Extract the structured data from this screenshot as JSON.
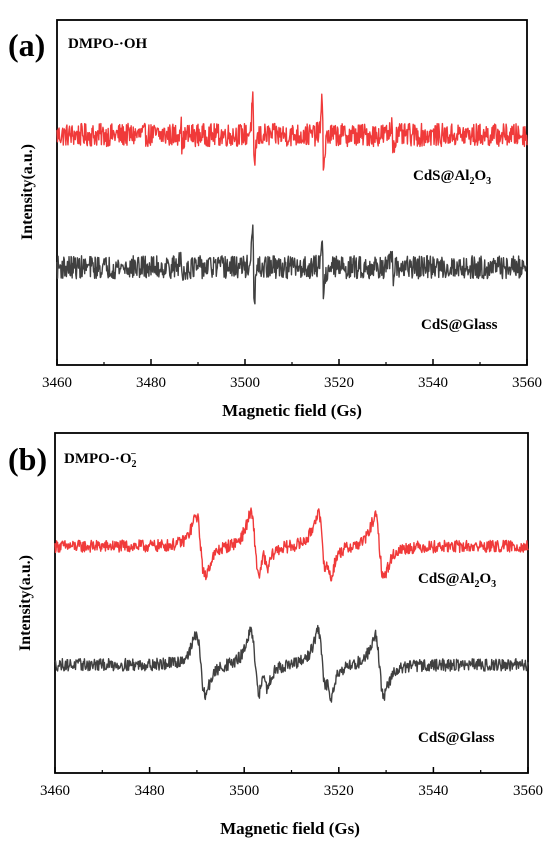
{
  "panels": [
    {
      "letter": "(a)",
      "probe": "DMPO-·OH",
      "probe_main": "DMPO-·OH",
      "probe_sup": "",
      "probe_sub": ""
    },
    {
      "letter": "(b)",
      "probe": "DMPO-·O2−",
      "probe_main": "DMPO-·O",
      "probe_sup": "−",
      "probe_sub": "2"
    }
  ],
  "colors": {
    "CdS@Al2O3": "#f03a3a",
    "CdS@Glass": "#404040"
  },
  "chart_data": [
    {
      "type": "line",
      "title": "",
      "xlabel": "Magnetic field (Gs)",
      "ylabel": "Intensity(a.u.)",
      "xlim": [
        3460,
        3560
      ],
      "xticks": [
        3460,
        3480,
        3500,
        3520,
        3540,
        3560
      ],
      "yticks_shown": false,
      "grid": false,
      "annotations": [
        "(a)",
        "DMPO-·OH"
      ],
      "series": [
        {
          "name": "CdS@Al2O3",
          "label_main": "CdS@Al",
          "label_sub1": "2",
          "label_mid": "O",
          "label_sub2": "3",
          "color": "#f03a3a",
          "baseline": 1.0,
          "lines": [
            {
              "x": 3486.5,
              "amp": 0.55
            },
            {
              "x": 3501.8,
              "amp": 1.55
            },
            {
              "x": 3516.6,
              "amp": 1.5
            },
            {
              "x": 3531.4,
              "amp": 0.55
            }
          ],
          "noise": 0.2
        },
        {
          "name": "CdS@Glass",
          "label_main": "CdS@Glass",
          "color": "#404040",
          "baseline": -1.3,
          "lines": [
            {
              "x": 3486.5,
              "amp": 0.55
            },
            {
              "x": 3501.8,
              "amp": 1.6
            },
            {
              "x": 3516.6,
              "amp": 1.3
            },
            {
              "x": 3531.4,
              "amp": 0.45
            }
          ],
          "noise": 0.2
        }
      ]
    },
    {
      "type": "line",
      "title": "",
      "xlabel": "Magnetic field (Gs)",
      "ylabel": "Intensity(a.u.)",
      "xlim": [
        3460,
        3560
      ],
      "xticks": [
        3460,
        3480,
        3500,
        3520,
        3540,
        3560
      ],
      "yticks_shown": false,
      "grid": false,
      "annotations": [
        "(b)",
        "DMPO-·O2−"
      ],
      "series": [
        {
          "name": "CdS@Al2O3",
          "label_main": "CdS@Al",
          "label_sub1": "2",
          "label_mid": "O",
          "label_sub2": "3",
          "color": "#f03a3a",
          "baseline": 1.1,
          "lines": [
            {
              "x": 3490.8,
              "amp": 1.5
            },
            {
              "x": 3502.3,
              "amp": 1.6
            },
            {
              "x": 3516.5,
              "amp": 1.6
            },
            {
              "x": 3528.6,
              "amp": 1.5
            }
          ],
          "noise": 0.12
        },
        {
          "name": "CdS@Glass",
          "label_main": "CdS@Glass",
          "color": "#404040",
          "baseline": -1.2,
          "lines": [
            {
              "x": 3490.8,
              "amp": 1.5
            },
            {
              "x": 3502.3,
              "amp": 1.6
            },
            {
              "x": 3516.5,
              "amp": 1.6
            },
            {
              "x": 3528.6,
              "amp": 1.5
            }
          ],
          "noise": 0.12
        }
      ]
    }
  ]
}
